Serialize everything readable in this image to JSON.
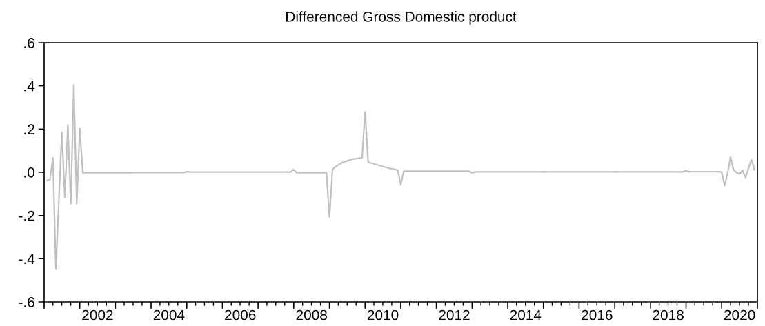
{
  "chart_data": {
    "type": "line",
    "title": "Differenced Gross Domestic product",
    "x": [
      "2001-02",
      "2001-03",
      "2001-04",
      "2001-05",
      "2001-06",
      "2001-07",
      "2001-08",
      "2001-09",
      "2001-10",
      "2001-11",
      "2001-12",
      "2002-01",
      "2002-02",
      "2002-03",
      "2002-04",
      "2002-05",
      "2002-06",
      "2002-07",
      "2002-08",
      "2002-09",
      "2002-10",
      "2002-11",
      "2002-12",
      "2003-01",
      "2003-02",
      "2003-03",
      "2003-04",
      "2003-05",
      "2003-06",
      "2003-07",
      "2003-08",
      "2003-09",
      "2003-10",
      "2003-11",
      "2003-12",
      "2004-01",
      "2004-02",
      "2004-03",
      "2004-04",
      "2004-05",
      "2004-06",
      "2004-07",
      "2004-08",
      "2004-09",
      "2004-10",
      "2004-11",
      "2004-12",
      "2005-01",
      "2005-02",
      "2005-03",
      "2005-04",
      "2005-05",
      "2005-06",
      "2005-07",
      "2005-08",
      "2005-09",
      "2005-10",
      "2005-11",
      "2005-12",
      "2006-01",
      "2006-02",
      "2006-03",
      "2006-04",
      "2006-05",
      "2006-06",
      "2006-07",
      "2006-08",
      "2006-09",
      "2006-10",
      "2006-11",
      "2006-12",
      "2007-01",
      "2007-02",
      "2007-03",
      "2007-04",
      "2007-05",
      "2007-06",
      "2007-07",
      "2007-08",
      "2007-09",
      "2007-10",
      "2007-11",
      "2007-12",
      "2008-01",
      "2008-02",
      "2008-03",
      "2008-04",
      "2008-05",
      "2008-06",
      "2008-07",
      "2008-08",
      "2008-09",
      "2008-10",
      "2008-11",
      "2008-12",
      "2009-01",
      "2009-02",
      "2009-03",
      "2009-04",
      "2009-05",
      "2009-06",
      "2009-07",
      "2009-08",
      "2009-09",
      "2009-10",
      "2009-11",
      "2009-12",
      "2010-01",
      "2010-02",
      "2010-03",
      "2010-04",
      "2010-05",
      "2010-06",
      "2010-07",
      "2010-08",
      "2010-09",
      "2010-10",
      "2010-11",
      "2010-12",
      "2011-01",
      "2011-02",
      "2011-03",
      "2011-04",
      "2011-05",
      "2011-06",
      "2011-07",
      "2011-08",
      "2011-09",
      "2011-10",
      "2011-11",
      "2011-12",
      "2012-01",
      "2012-02",
      "2012-03",
      "2012-04",
      "2012-05",
      "2012-06",
      "2012-07",
      "2012-08",
      "2012-09",
      "2012-10",
      "2012-11",
      "2012-12",
      "2013-01",
      "2013-02",
      "2013-03",
      "2013-04",
      "2013-05",
      "2013-06",
      "2013-07",
      "2013-08",
      "2013-09",
      "2013-10",
      "2013-11",
      "2013-12",
      "2014-01",
      "2014-02",
      "2014-03",
      "2014-04",
      "2014-05",
      "2014-06",
      "2014-07",
      "2014-08",
      "2014-09",
      "2014-10",
      "2014-11",
      "2014-12",
      "2015-01",
      "2015-02",
      "2015-03",
      "2015-04",
      "2015-05",
      "2015-06",
      "2015-07",
      "2015-08",
      "2015-09",
      "2015-10",
      "2015-11",
      "2015-12",
      "2016-01",
      "2016-02",
      "2016-03",
      "2016-04",
      "2016-05",
      "2016-06",
      "2016-07",
      "2016-08",
      "2016-09",
      "2016-10",
      "2016-11",
      "2016-12",
      "2017-01",
      "2017-02",
      "2017-03",
      "2017-04",
      "2017-05",
      "2017-06",
      "2017-07",
      "2017-08",
      "2017-09",
      "2017-10",
      "2017-11",
      "2017-12",
      "2018-01",
      "2018-02",
      "2018-03",
      "2018-04",
      "2018-05",
      "2018-06",
      "2018-07",
      "2018-08",
      "2018-09",
      "2018-10",
      "2018-11",
      "2018-12",
      "2019-01",
      "2019-02",
      "2019-03",
      "2019-04",
      "2019-05",
      "2019-06",
      "2019-07",
      "2019-08",
      "2019-09",
      "2019-10",
      "2019-11",
      "2019-12",
      "2020-01",
      "2020-02",
      "2020-03",
      "2020-04",
      "2020-05",
      "2020-06",
      "2020-07",
      "2020-08",
      "2020-09",
      "2020-10",
      "2020-11",
      "2020-12"
    ],
    "series": [
      {
        "color": "#c0c0c0",
        "values": [
          -0.038,
          -0.034,
          0.067,
          -0.448,
          -0.13,
          0.186,
          -0.118,
          0.218,
          -0.146,
          0.405,
          -0.146,
          0.204,
          -0.002,
          -0.002,
          -0.002,
          -0.002,
          -0.002,
          -0.002,
          -0.002,
          -0.002,
          -0.002,
          -0.002,
          -0.002,
          -0.002,
          -0.002,
          -0.002,
          -0.002,
          -0.002,
          -0.002,
          -0.001,
          -0.001,
          -0.001,
          -0.001,
          -0.001,
          -0.001,
          -0.001,
          -0.001,
          -0.001,
          -0.001,
          -0.001,
          -0.001,
          -0.001,
          -0.001,
          -0.001,
          -0.001,
          -0.001,
          -0.001,
          0.003,
          0.001,
          0.001,
          0.001,
          0.001,
          0.001,
          0.001,
          0.001,
          0.001,
          0.001,
          0.001,
          0.001,
          0.001,
          0.001,
          0.001,
          0.001,
          0.001,
          0.001,
          0.001,
          0.001,
          0.001,
          0.001,
          0.001,
          0.001,
          0.001,
          0.001,
          0.001,
          0.001,
          0.001,
          0.001,
          0.001,
          0.001,
          0.001,
          0.001,
          0.001,
          0.001,
          0.013,
          -0.002,
          -0.002,
          -0.002,
          -0.002,
          -0.002,
          -0.002,
          -0.002,
          -0.002,
          -0.002,
          -0.002,
          -0.002,
          -0.207,
          0.012,
          0.025,
          0.034,
          0.042,
          0.048,
          0.053,
          0.058,
          0.061,
          0.063,
          0.065,
          0.067,
          0.28,
          0.047,
          0.043,
          0.039,
          0.035,
          0.031,
          0.027,
          0.023,
          0.019,
          0.016,
          0.013,
          0.01,
          -0.058,
          0.005,
          0.005,
          0.005,
          0.005,
          0.005,
          0.005,
          0.005,
          0.005,
          0.005,
          0.005,
          0.005,
          0.005,
          0.005,
          0.005,
          0.005,
          0.005,
          0.005,
          0.005,
          0.005,
          0.005,
          0.005,
          0.005,
          0.005,
          -0.003,
          0.002,
          0.002,
          0.002,
          0.002,
          0.002,
          0.002,
          0.002,
          0.002,
          0.002,
          0.002,
          0.002,
          0.002,
          0.002,
          0.002,
          0.002,
          0.002,
          0.002,
          0.002,
          0.002,
          0.002,
          0.002,
          0.002,
          0.002,
          0.003,
          0.002,
          0.002,
          0.002,
          0.002,
          0.002,
          0.002,
          0.002,
          0.002,
          0.002,
          0.002,
          0.002,
          0.002,
          0.002,
          0.002,
          0.002,
          0.002,
          0.002,
          0.002,
          0.002,
          0.002,
          0.002,
          0.002,
          0.002,
          0.003,
          0.002,
          0.002,
          0.002,
          0.002,
          0.002,
          0.002,
          0.002,
          0.002,
          0.002,
          0.002,
          0.002,
          0.002,
          0.002,
          0.002,
          0.002,
          0.002,
          0.002,
          0.002,
          0.002,
          0.002,
          0.002,
          0.002,
          0.002,
          0.007,
          0.003,
          0.003,
          0.003,
          0.003,
          0.003,
          0.003,
          0.003,
          0.003,
          0.003,
          0.003,
          0.003,
          0.001,
          -0.062,
          -0.005,
          0.07,
          0.012,
          -0.001,
          -0.008,
          0.01,
          -0.024,
          0.017,
          0.06,
          0.012
        ]
      }
    ],
    "xlim": [
      "2001-01",
      "2021-01"
    ],
    "xticks": [
      {
        "value": "2001-01",
        "label": null
      },
      {
        "value": "2001-04",
        "label": null
      },
      {
        "value": "2001-07",
        "label": null
      },
      {
        "value": "2001-10",
        "label": null
      },
      {
        "value": "2002-01",
        "label": null
      },
      {
        "value": "2002-04",
        "label": null
      },
      {
        "value": "2002-07",
        "label": null
      },
      {
        "value": "2002-10",
        "label": null
      },
      {
        "value": "2003-01",
        "label": null
      },
      {
        "value": "2003-04",
        "label": null
      },
      {
        "value": "2003-07",
        "label": null
      },
      {
        "value": "2003-10",
        "label": null
      },
      {
        "value": "2004-01",
        "label": null
      },
      {
        "value": "2004-04",
        "label": null
      },
      {
        "value": "2004-07",
        "label": null
      },
      {
        "value": "2004-10",
        "label": null
      },
      {
        "value": "2005-01",
        "label": null
      },
      {
        "value": "2005-04",
        "label": null
      },
      {
        "value": "2005-07",
        "label": null
      },
      {
        "value": "2005-10",
        "label": null
      },
      {
        "value": "2006-01",
        "label": null
      },
      {
        "value": "2006-04",
        "label": null
      },
      {
        "value": "2006-07",
        "label": null
      },
      {
        "value": "2006-10",
        "label": null
      },
      {
        "value": "2007-01",
        "label": null
      },
      {
        "value": "2007-04",
        "label": null
      },
      {
        "value": "2007-07",
        "label": null
      },
      {
        "value": "2007-10",
        "label": null
      },
      {
        "value": "2008-01",
        "label": null
      },
      {
        "value": "2008-04",
        "label": null
      },
      {
        "value": "2008-07",
        "label": null
      },
      {
        "value": "2008-10",
        "label": null
      },
      {
        "value": "2009-01",
        "label": null
      },
      {
        "value": "2009-04",
        "label": null
      },
      {
        "value": "2009-07",
        "label": null
      },
      {
        "value": "2009-10",
        "label": null
      },
      {
        "value": "2010-01",
        "label": null
      },
      {
        "value": "2010-04",
        "label": null
      },
      {
        "value": "2010-07",
        "label": null
      },
      {
        "value": "2010-10",
        "label": null
      },
      {
        "value": "2011-01",
        "label": null
      },
      {
        "value": "2011-04",
        "label": null
      },
      {
        "value": "2011-07",
        "label": null
      },
      {
        "value": "2011-10",
        "label": null
      },
      {
        "value": "2012-01",
        "label": null
      },
      {
        "value": "2012-04",
        "label": null
      },
      {
        "value": "2012-07",
        "label": null
      },
      {
        "value": "2012-10",
        "label": null
      },
      {
        "value": "2013-01",
        "label": null
      },
      {
        "value": "2013-04",
        "label": null
      },
      {
        "value": "2013-07",
        "label": null
      },
      {
        "value": "2013-10",
        "label": null
      },
      {
        "value": "2014-01",
        "label": null
      },
      {
        "value": "2014-04",
        "label": null
      },
      {
        "value": "2014-07",
        "label": null
      },
      {
        "value": "2014-10",
        "label": null
      },
      {
        "value": "2015-01",
        "label": null
      },
      {
        "value": "2015-04",
        "label": null
      },
      {
        "value": "2015-07",
        "label": null
      },
      {
        "value": "2015-10",
        "label": null
      },
      {
        "value": "2016-01",
        "label": null
      },
      {
        "value": "2016-04",
        "label": null
      },
      {
        "value": "2016-07",
        "label": null
      },
      {
        "value": "2016-10",
        "label": null
      },
      {
        "value": "2017-01",
        "label": null
      },
      {
        "value": "2017-04",
        "label": null
      },
      {
        "value": "2017-07",
        "label": null
      },
      {
        "value": "2017-10",
        "label": null
      },
      {
        "value": "2018-01",
        "label": null
      },
      {
        "value": "2018-04",
        "label": null
      },
      {
        "value": "2018-07",
        "label": null
      },
      {
        "value": "2018-10",
        "label": null
      },
      {
        "value": "2019-01",
        "label": null
      },
      {
        "value": "2019-04",
        "label": null
      },
      {
        "value": "2019-07",
        "label": null
      },
      {
        "value": "2019-10",
        "label": null
      },
      {
        "value": "2020-01",
        "label": null
      },
      {
        "value": "2020-04",
        "label": null
      },
      {
        "value": "2020-07",
        "label": null
      },
      {
        "value": "2020-10",
        "label": null
      },
      {
        "value": "2021-01",
        "label": null
      },
      {
        "value": "2002-07-02",
        "label": "2002"
      },
      {
        "value": "2004-07-02",
        "label": "2004"
      },
      {
        "value": "2006-07-02",
        "label": "2006"
      },
      {
        "value": "2008-07-02",
        "label": "2008"
      },
      {
        "value": "2010-07-02",
        "label": "2010"
      },
      {
        "value": "2012-07-02",
        "label": "2012"
      },
      {
        "value": "2014-07-02",
        "label": "2014"
      },
      {
        "value": "2016-07-02",
        "label": "2016"
      },
      {
        "value": "2018-07-02",
        "label": "2018"
      },
      {
        "value": "2020-07-02",
        "label": "2020"
      }
    ],
    "ylim": [
      -0.6,
      0.6
    ],
    "yticks": [
      {
        "value": -0.6,
        "label": "-.6"
      },
      {
        "value": -0.4,
        "label": "-.4"
      },
      {
        "value": -0.2,
        "label": "-.2"
      },
      {
        "value": 0.0,
        "label": ".0"
      },
      {
        "value": 0.2,
        "label": ".2"
      },
      {
        "value": 0.4,
        "label": ".4"
      },
      {
        "value": 0.6,
        "label": ".6"
      }
    ],
    "grid": false,
    "legend": false,
    "marker": "none",
    "line_style": "solid"
  }
}
